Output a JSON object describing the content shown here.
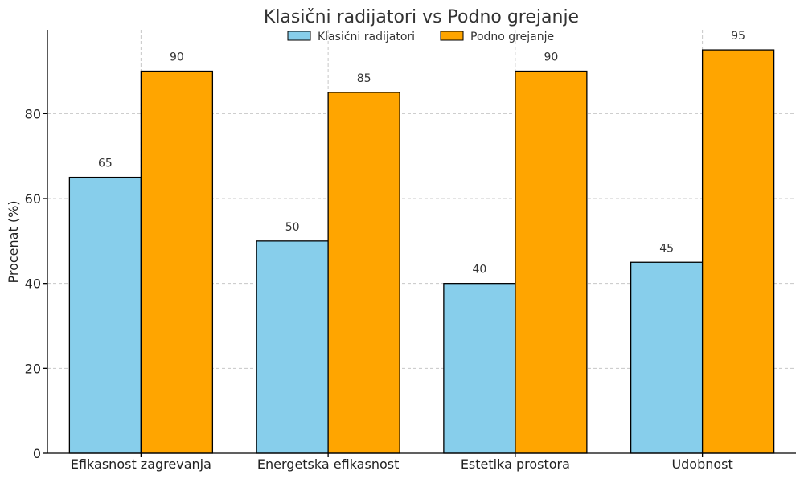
{
  "chart_data": {
    "type": "bar",
    "title": "Klasični radijatori vs Podno grejanje",
    "xlabel": "",
    "ylabel": "Procenat (%)",
    "categories": [
      "Efikasnost zagrevanja",
      "Energetska efikasnost",
      "Estetika prostora",
      "Udobnost"
    ],
    "series": [
      {
        "name": "Klasični radijatori",
        "values": [
          65,
          50,
          40,
          45
        ],
        "color": "#87CEEB"
      },
      {
        "name": "Podno grejanje",
        "values": [
          90,
          85,
          90,
          95
        ],
        "color": "#FFA500"
      }
    ],
    "ylim": [
      0,
      99.75
    ],
    "yticks": [
      0,
      20,
      40,
      60,
      80
    ],
    "grid": true,
    "legend_position": "top-center"
  }
}
